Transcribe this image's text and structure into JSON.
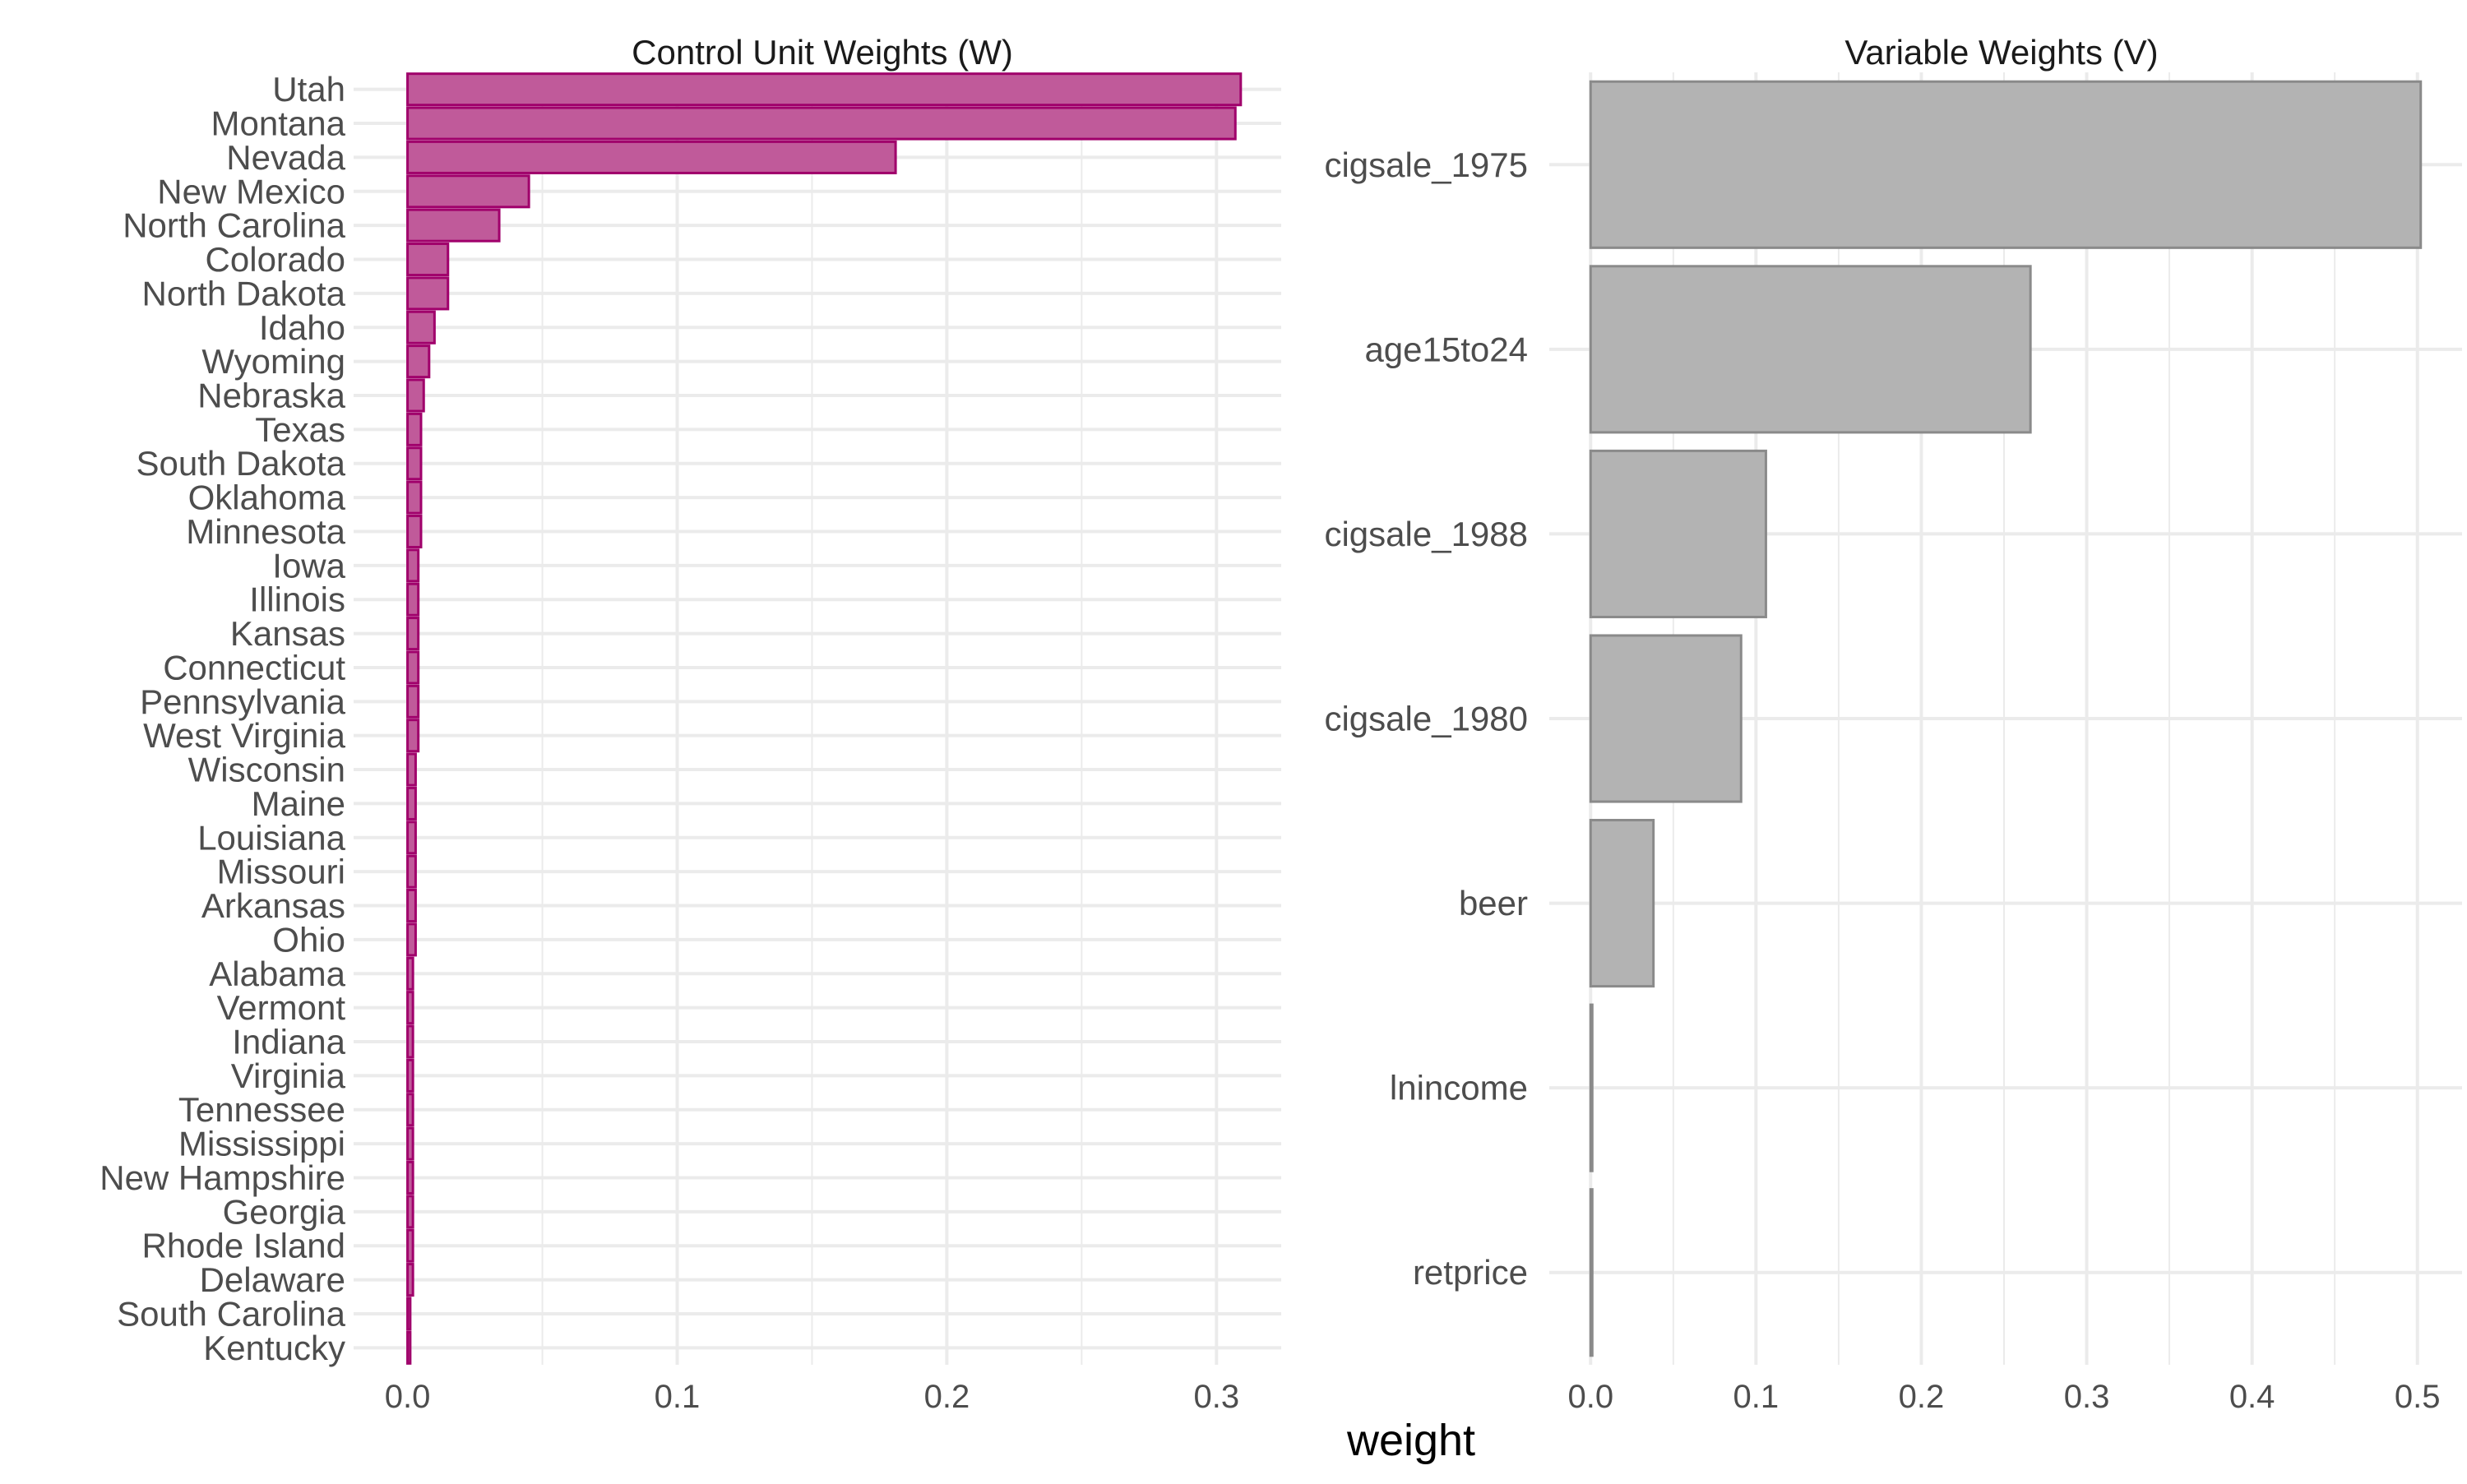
{
  "xlabel": "weight",
  "chart_data": [
    {
      "type": "bar",
      "orientation": "horizontal",
      "title": "Control Unit Weights (W)",
      "xlabel": "weight",
      "ylabel": "",
      "categories": [
        "Utah",
        "Montana",
        "Nevada",
        "New Mexico",
        "North Carolina",
        "Colorado",
        "North Dakota",
        "Idaho",
        "Wyoming",
        "Nebraska",
        "Texas",
        "South Dakota",
        "Oklahoma",
        "Minnesota",
        "Iowa",
        "Illinois",
        "Kansas",
        "Connecticut",
        "Pennsylvania",
        "West Virginia",
        "Wisconsin",
        "Maine",
        "Louisiana",
        "Missouri",
        "Arkansas",
        "Ohio",
        "Alabama",
        "Vermont",
        "Indiana",
        "Virginia",
        "Tennessee",
        "Mississippi",
        "New Hampshire",
        "Georgia",
        "Rhode Island",
        "Delaware",
        "South Carolina",
        "Kentucky"
      ],
      "values": [
        0.309,
        0.307,
        0.181,
        0.045,
        0.034,
        0.015,
        0.015,
        0.01,
        0.008,
        0.006,
        0.005,
        0.005,
        0.005,
        0.005,
        0.004,
        0.004,
        0.004,
        0.004,
        0.004,
        0.004,
        0.003,
        0.003,
        0.003,
        0.003,
        0.003,
        0.003,
        0.002,
        0.002,
        0.002,
        0.002,
        0.002,
        0.002,
        0.002,
        0.002,
        0.002,
        0.002,
        0.001,
        0.001
      ],
      "xlim": [
        -0.02,
        0.324
      ],
      "xticks": [
        "0.0",
        "0.1",
        "0.2",
        "0.3"
      ],
      "grid": true,
      "bar_fill": "#c05a9a",
      "bar_stroke": "#a0006b"
    },
    {
      "type": "bar",
      "orientation": "horizontal",
      "title": "Variable Weights (V)",
      "xlabel": "weight",
      "ylabel": "",
      "categories": [
        "cigsale_1975",
        "age15to24",
        "cigsale_1988",
        "cigsale_1980",
        "beer",
        "lnincome",
        "retprice"
      ],
      "values": [
        0.502,
        0.266,
        0.106,
        0.091,
        0.038,
        0.001,
        0.001
      ],
      "xlim": [
        -0.025,
        0.527
      ],
      "xticks": [
        "0.0",
        "0.1",
        "0.2",
        "0.3",
        "0.4",
        "0.5"
      ],
      "grid": true,
      "bar_fill": "#b3b3b3",
      "bar_stroke": "#8a8a8a"
    }
  ]
}
